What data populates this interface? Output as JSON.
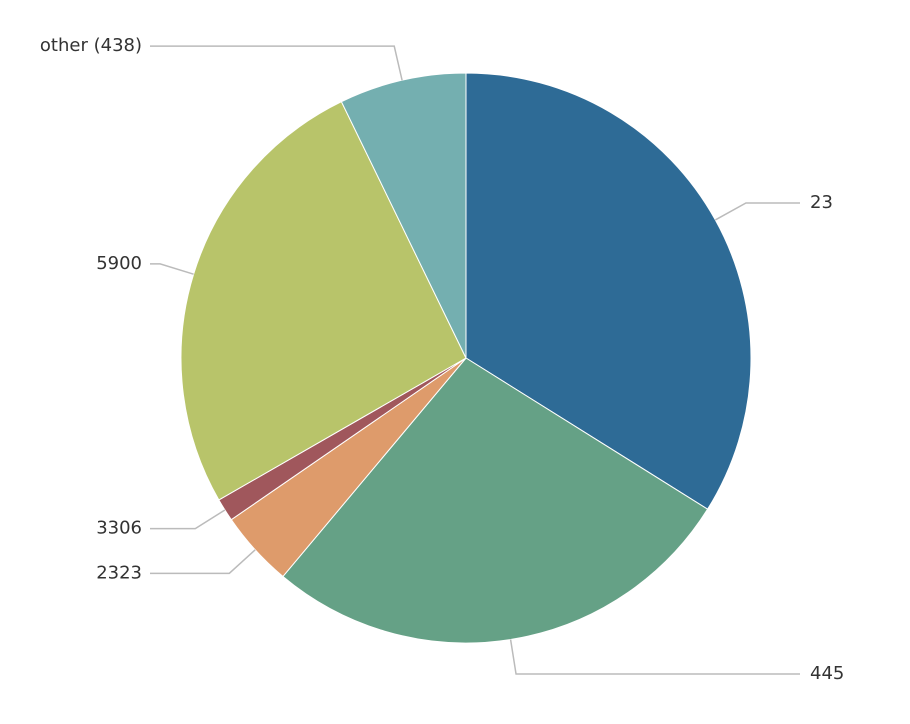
{
  "chart_data": {
    "type": "pie",
    "categories": [
      "23",
      "445",
      "2323",
      "3306",
      "5900",
      "other (438)"
    ],
    "values": [
      33.9,
      27.2,
      4.3,
      1.3,
      26.1,
      7.2
    ],
    "colors": [
      "#2e6b96",
      "#65a186",
      "#de9b6b",
      "#a0575c",
      "#b8c46a",
      "#74afb0"
    ]
  }
}
